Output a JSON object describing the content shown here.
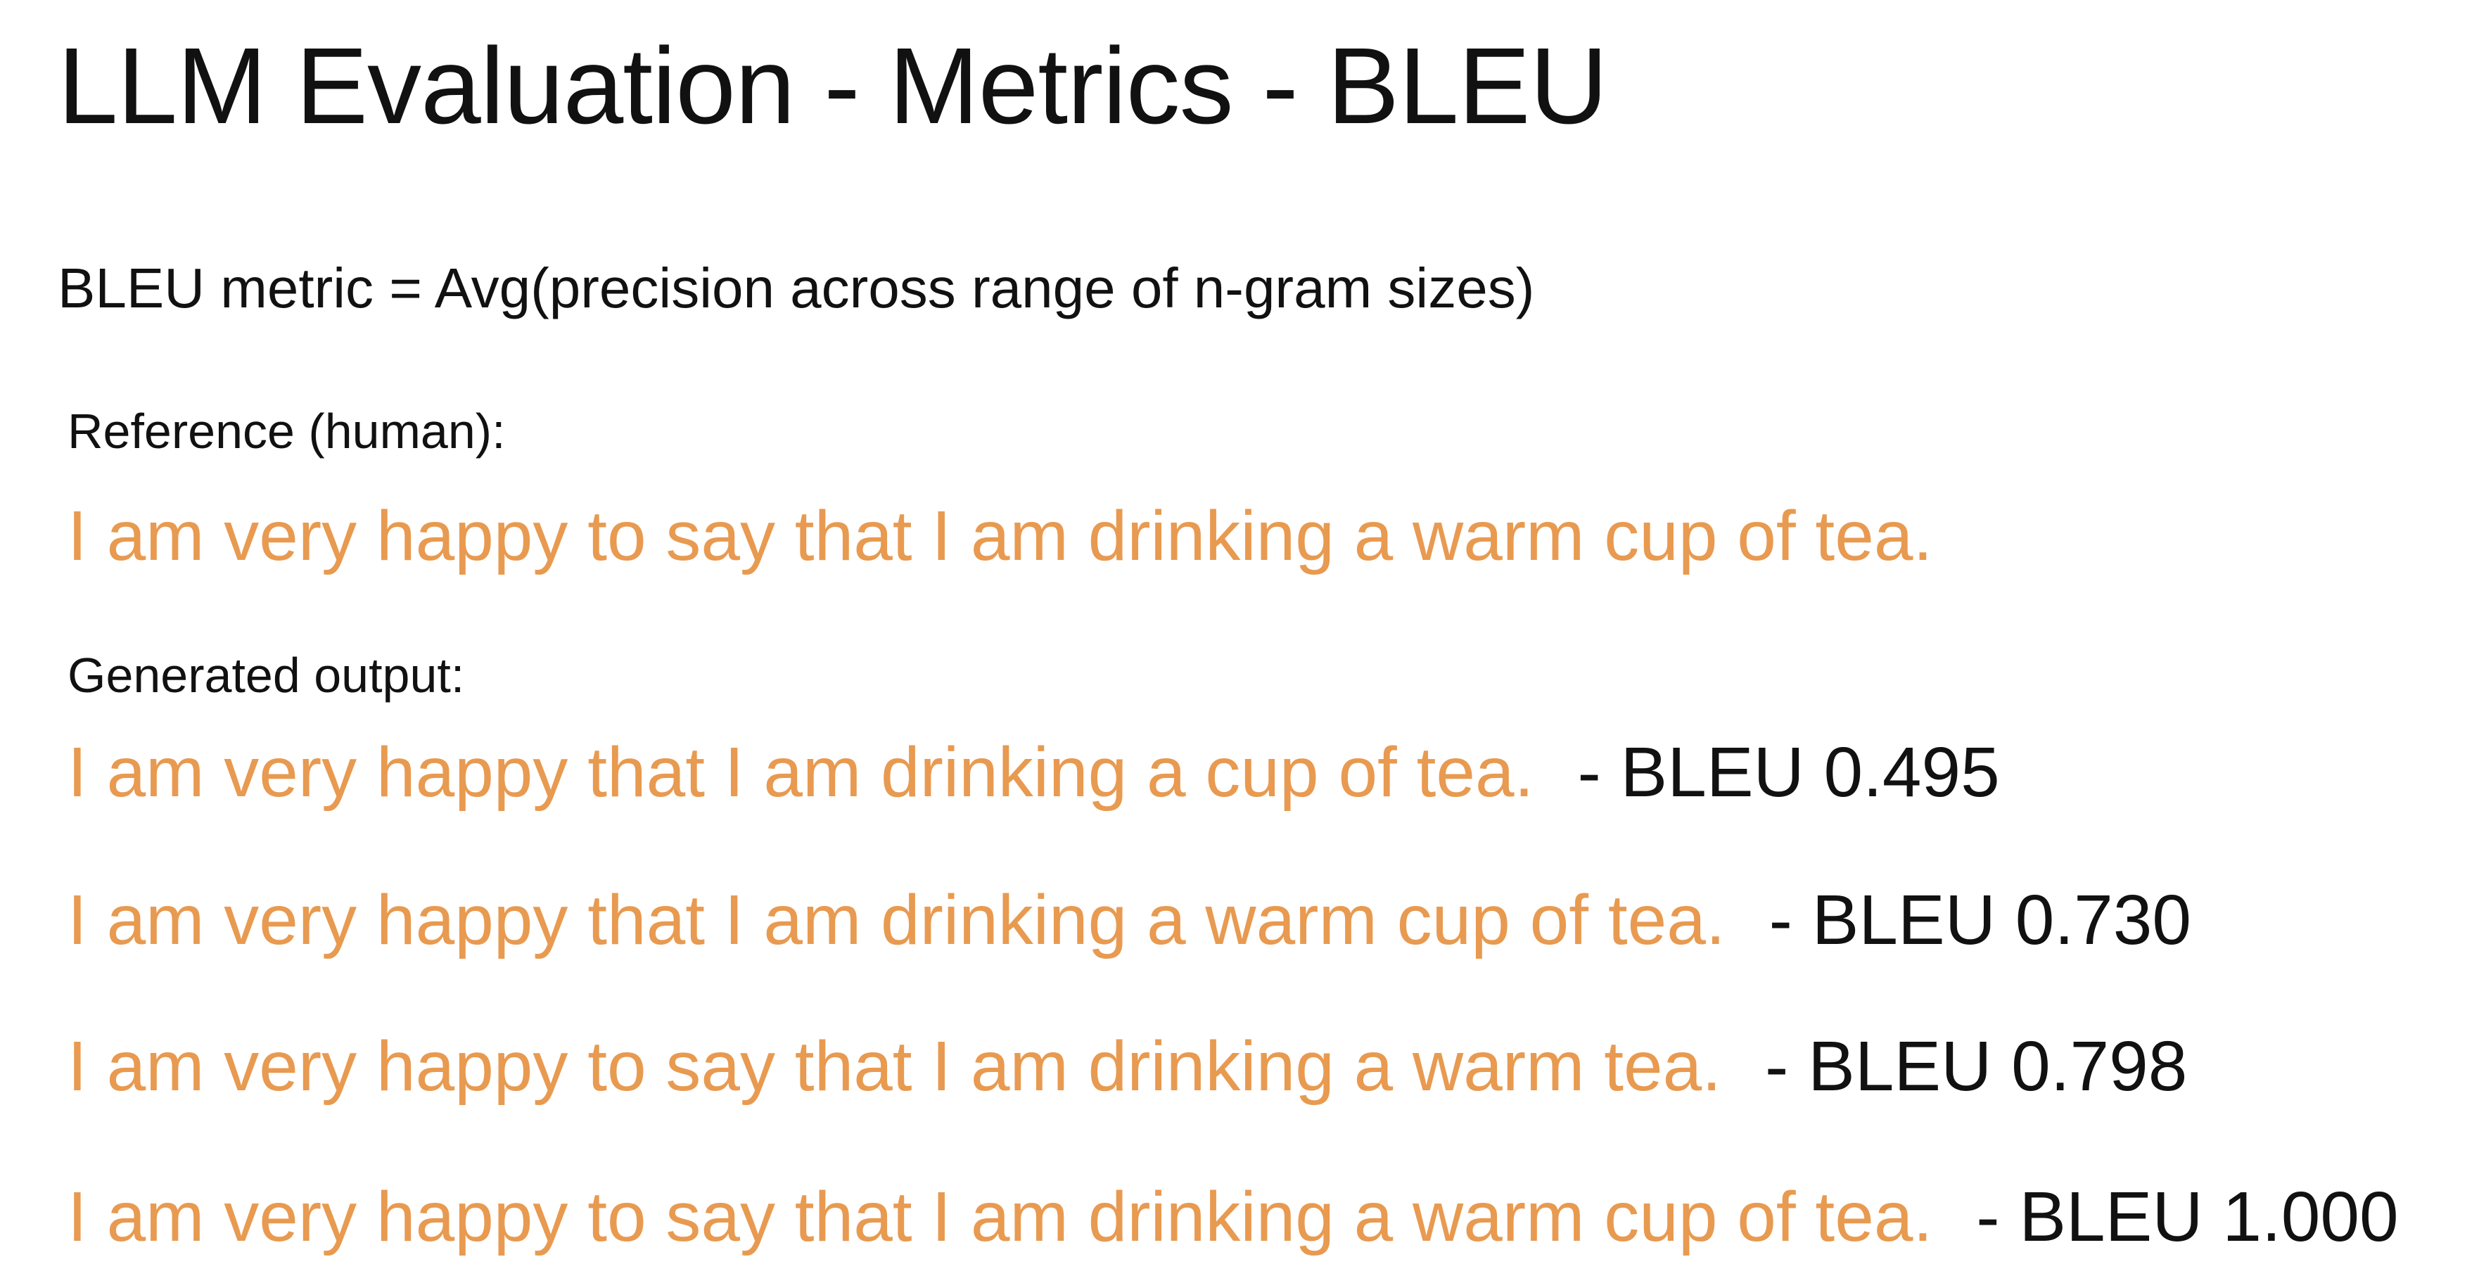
{
  "slide": {
    "title": "LLM Evaluation - Metrics - BLEU",
    "formula": "BLEU metric = Avg(precision across range of n-gram sizes)",
    "reference": {
      "label": "Reference (human):",
      "sentence": "I am very happy to say that I am drinking a warm cup of tea."
    },
    "generated": {
      "label": "Generated output:",
      "outputs": [
        {
          "sentence": "I am very happy that I am drinking a cup of tea.",
          "score_label": "- BLEU 0.495"
        },
        {
          "sentence": "I am very happy that I am drinking a warm cup of tea.",
          "score_label": "- BLEU 0.730"
        },
        {
          "sentence": "I am very happy to say that I am drinking a warm tea.",
          "score_label": "- BLEU 0.798"
        },
        {
          "sentence": "I am very happy to say that I am drinking a warm cup of tea.",
          "score_label": "- BLEU 1.000"
        }
      ]
    },
    "colors": {
      "highlight_text": "#e89a50",
      "body_text": "#111111",
      "background": "#ffffff"
    }
  }
}
